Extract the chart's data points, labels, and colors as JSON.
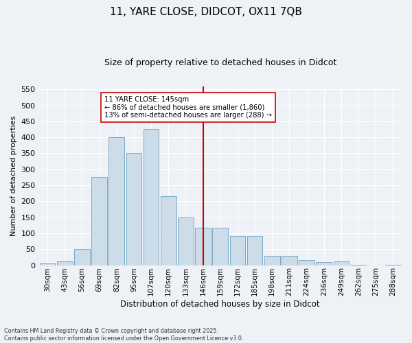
{
  "title1": "11, YARE CLOSE, DIDCOT, OX11 7QB",
  "title2": "Size of property relative to detached houses in Didcot",
  "xlabel": "Distribution of detached houses by size in Didcot",
  "ylabel": "Number of detached properties",
  "categories": [
    "30sqm",
    "43sqm",
    "56sqm",
    "69sqm",
    "82sqm",
    "95sqm",
    "107sqm",
    "120sqm",
    "133sqm",
    "146sqm",
    "159sqm",
    "172sqm",
    "185sqm",
    "198sqm",
    "211sqm",
    "224sqm",
    "236sqm",
    "249sqm",
    "262sqm",
    "275sqm",
    "288sqm"
  ],
  "values": [
    5,
    12,
    50,
    275,
    400,
    350,
    425,
    215,
    150,
    118,
    118,
    92,
    92,
    30,
    30,
    17,
    10,
    12,
    2,
    0,
    2
  ],
  "bar_color": "#ccdce8",
  "bar_edge_color": "#7aaac8",
  "vline_color": "#cc0000",
  "annotation_text": "11 YARE CLOSE: 145sqm\n← 86% of detached houses are smaller (1,860)\n13% of semi-detached houses are larger (288) →",
  "annotation_box_color": "#ffffff",
  "annotation_box_edge": "#cc0000",
  "bg_color": "#eef2f7",
  "grid_color": "#ffffff",
  "footer": "Contains HM Land Registry data © Crown copyright and database right 2025.\nContains public sector information licensed under the Open Government Licence v3.0.",
  "ylim": [
    0,
    560
  ],
  "yticks": [
    0,
    50,
    100,
    150,
    200,
    250,
    300,
    350,
    400,
    450,
    500,
    550
  ]
}
